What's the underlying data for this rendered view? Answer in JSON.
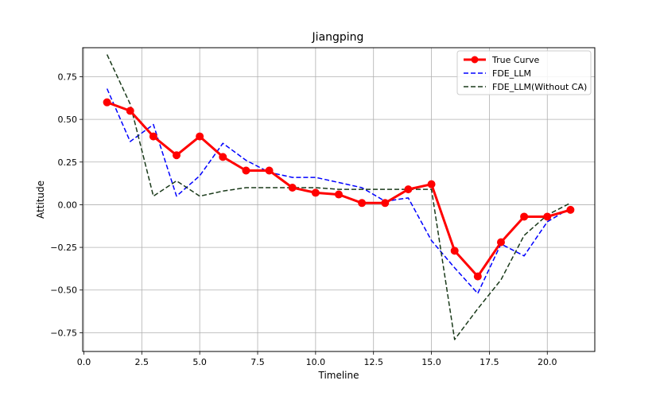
{
  "chart_data": {
    "type": "line",
    "title": "Jiangping",
    "xlabel": "Timeline",
    "ylabel": "Attitude",
    "xlim": [
      -0.05,
      22.05
    ],
    "ylim": [
      -0.86,
      0.92
    ],
    "grid": true,
    "legend_position": "top-right",
    "x_ticks": [
      0.0,
      2.5,
      5.0,
      7.5,
      10.0,
      12.5,
      15.0,
      17.5,
      20.0
    ],
    "x_tick_labels": [
      "0.0",
      "2.5",
      "5.0",
      "7.5",
      "10.0",
      "12.5",
      "15.0",
      "17.5",
      "20.0"
    ],
    "y_ticks": [
      -0.75,
      -0.5,
      -0.25,
      0.0,
      0.25,
      0.5,
      0.75
    ],
    "y_tick_labels": [
      "−0.75",
      "−0.50",
      "−0.25",
      "0.00",
      "0.25",
      "0.50",
      "0.75"
    ],
    "x": [
      1,
      2,
      3,
      4,
      5,
      6,
      7,
      8,
      9,
      10,
      11,
      12,
      13,
      14,
      15,
      16,
      17,
      18,
      19,
      20,
      21
    ],
    "series": [
      {
        "name": "True Curve",
        "color": "#ff0000",
        "style": "solid-marker",
        "values": [
          0.6,
          0.55,
          0.4,
          0.29,
          0.4,
          0.28,
          0.2,
          0.2,
          0.1,
          0.07,
          0.06,
          0.01,
          0.01,
          0.09,
          0.12,
          -0.27,
          -0.42,
          -0.22,
          -0.07,
          -0.07,
          -0.03
        ]
      },
      {
        "name": "FDE_LLM",
        "color": "#0000ff",
        "style": "dashed",
        "values": [
          0.68,
          0.37,
          0.47,
          0.05,
          0.17,
          0.36,
          0.26,
          0.19,
          0.16,
          0.16,
          0.13,
          0.1,
          0.02,
          0.04,
          -0.21,
          -0.37,
          -0.52,
          -0.23,
          -0.3,
          -0.1,
          -0.02
        ]
      },
      {
        "name": "FDE_LLM(Without CA)",
        "color": "#1a3a1a",
        "style": "dashed",
        "values": [
          0.88,
          0.59,
          0.05,
          0.14,
          0.05,
          0.08,
          0.1,
          0.1,
          0.1,
          0.1,
          0.09,
          0.09,
          0.09,
          0.09,
          0.09,
          -0.79,
          -0.61,
          -0.44,
          -0.18,
          -0.06,
          0.01
        ]
      }
    ]
  }
}
